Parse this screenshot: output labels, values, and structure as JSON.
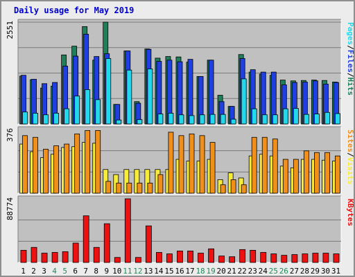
{
  "chart_data": {
    "type": "bar",
    "title": "Daily usage for May 2019",
    "x": [
      1,
      2,
      3,
      4,
      5,
      6,
      7,
      8,
      9,
      10,
      11,
      12,
      13,
      14,
      15,
      16,
      17,
      18,
      19,
      20,
      21,
      22,
      23,
      24,
      25,
      26,
      27,
      28,
      29,
      30,
      31
    ],
    "weekend_days": [
      4,
      5,
      11,
      12,
      18,
      19,
      25,
      26
    ],
    "colors": {
      "hits": "#1f7f5a",
      "files": "#1f3fe0",
      "pages": "#22d8ec",
      "visits": "#f8ec3a",
      "sites": "#f0901a",
      "kbytes": "#ee1111",
      "weekday_label": "#000000",
      "weekend_label": "#1f8b58"
    },
    "panels": [
      {
        "id": "hits-panel",
        "ymax_label": "2551",
        "ymax": 2551,
        "right_label": [
          "Pages",
          "Files",
          "Hits"
        ],
        "right_label_colors": [
          "#22d8ec",
          "#1f3fe0",
          "#1f7f5a"
        ],
        "series": [
          {
            "name": "Hits",
            "key": "hits",
            "values": [
              1200,
              1110,
              900,
              950,
              1730,
              1950,
              2440,
              1600,
              2551,
              490,
              1830,
              560,
              1880,
              1650,
              1690,
              1680,
              1550,
              1190,
              1600,
              720,
              440,
              1740,
              1300,
              1250,
              1220,
              1100,
              1080,
              1090,
              1100,
              1090,
              1050
            ]
          },
          {
            "name": "Files",
            "key": "files",
            "values": [
              1220,
              1120,
              1010,
              1040,
              1450,
              1700,
              2250,
              1690,
              1760,
              490,
              1830,
              520,
              1870,
              1570,
              1600,
              1560,
              1620,
              1190,
              1600,
              560,
              440,
              1640,
              1360,
              1300,
              1300,
              980,
              1040,
              1050,
              1080,
              1000,
              1040
            ]
          },
          {
            "name": "Pages",
            "key": "pages",
            "values": [
              300,
              270,
              230,
              270,
              380,
              700,
              860,
              610,
              1640,
              100,
              1350,
              110,
              1380,
              250,
              270,
              230,
              210,
              230,
              240,
              240,
              120,
              1130,
              380,
              230,
              230,
              380,
              390,
              240,
              250,
              290,
              260
            ]
          }
        ]
      },
      {
        "id": "visits-panel",
        "ymax_label": "376",
        "ymax": 376,
        "right_label": [
          "Sites",
          "Visits"
        ],
        "right_label_colors": [
          "#f0901a",
          "#f8ec3a"
        ],
        "series": [
          {
            "name": "Visits",
            "key": "visits",
            "values": [
              290,
              245,
              210,
              230,
              270,
              275,
              300,
              295,
              140,
              110,
              140,
              140,
              140,
              140,
              140,
              200,
              190,
              190,
              200,
              80,
              120,
              90,
              220,
              230,
              220,
              160,
              150,
              200,
              200,
              195,
              190
            ]
          },
          {
            "name": "Sites",
            "key": "sites",
            "values": [
              340,
              330,
              260,
              280,
              290,
              350,
              370,
              370,
              70,
              60,
              60,
              60,
              60,
              110,
              360,
              340,
              350,
              340,
              300,
              50,
              80,
              50,
              330,
              330,
              320,
              200,
              200,
              250,
              240,
              240,
              220
            ]
          }
        ]
      },
      {
        "id": "kbytes-panel",
        "ymax_label": "88774",
        "ymax": 88774,
        "right_label": [
          "KBytes"
        ],
        "right_label_colors": [
          "#ee1111"
        ],
        "series": [
          {
            "name": "KBytes",
            "key": "kbytes",
            "values": [
              17000,
              21000,
              13000,
              14000,
              15000,
              27000,
              65000,
              21000,
              54000,
              7000,
              88774,
              7000,
              51000,
              14000,
              12000,
              16000,
              16000,
              13000,
              19000,
              9000,
              8000,
              18000,
              17000,
              14000,
              12000,
              10000,
              11000,
              12000,
              13000,
              13000,
              12000
            ]
          }
        ]
      }
    ]
  }
}
